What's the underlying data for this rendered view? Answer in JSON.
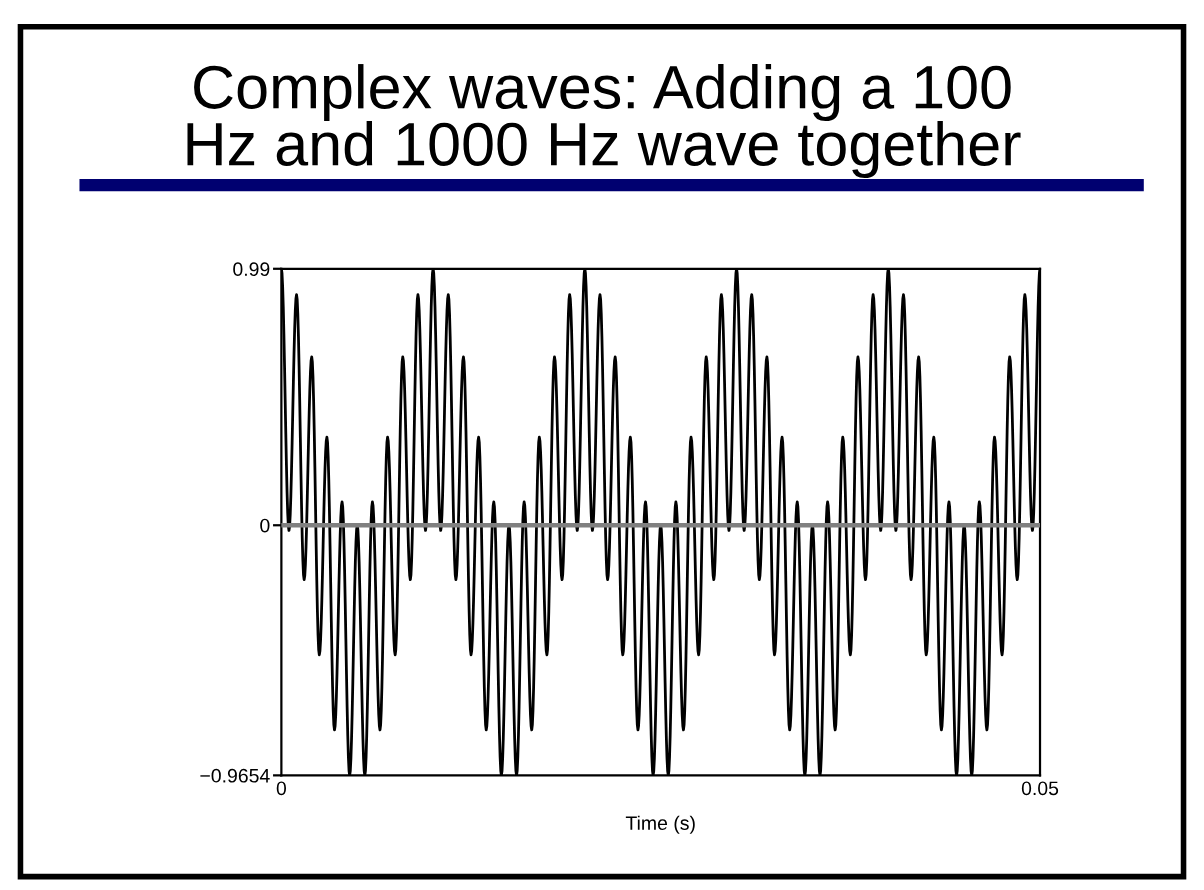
{
  "chart_data": {
    "type": "line",
    "title": "Complex waves: Adding a 100\nHz and 1000 Hz wave together",
    "xlabel": "Time (s)",
    "x": [
      0,
      0.0005,
      0.001,
      0.0015,
      0.002,
      0.0025,
      0.003,
      0.0035,
      0.004,
      0.0045,
      0.005,
      0.0055,
      0.006,
      0.0065,
      0.007,
      0.0075,
      0.008,
      0.0085,
      0.009,
      0.0095,
      0.01,
      0.0105,
      0.011,
      0.0115,
      0.012,
      0.0125,
      0.013,
      0.0135,
      0.014,
      0.0145,
      0.015,
      0.0155,
      0.016,
      0.0165,
      0.017,
      0.0175,
      0.018,
      0.0185,
      0.019,
      0.0195,
      0.02,
      0.0205,
      0.021,
      0.0215,
      0.022,
      0.0225,
      0.023,
      0.0235,
      0.024,
      0.0245,
      0.025,
      0.0255,
      0.026,
      0.0265,
      0.027,
      0.0275,
      0.028,
      0.0285,
      0.029,
      0.0295,
      0.03,
      0.0305,
      0.031,
      0.0315,
      0.032,
      0.0325,
      0.033,
      0.0335,
      0.034,
      0.0345,
      0.035,
      0.0355,
      0.036,
      0.0365,
      0.037,
      0.0375,
      0.038,
      0.0385,
      0.039,
      0.0395,
      0.04,
      0.0405,
      0.041,
      0.0415,
      0.042,
      0.0425,
      0.043,
      0.0435,
      0.044,
      0.0445,
      0.045,
      0.0455,
      0.046,
      0.0465,
      0.047,
      0.0475,
      0.048,
      0.0485,
      0.049,
      0.0495,
      0.05
    ],
    "series": [
      {
        "color": "#000000",
        "values": [
          0.99,
          -0.02,
          0.89,
          -0.21,
          0.65,
          -0.5,
          0.34,
          -0.79,
          0.09,
          -0.9654,
          0,
          -0.9654,
          0.09,
          -0.79,
          0.34,
          -0.5,
          0.65,
          -0.21,
          0.89,
          -0.02,
          0.99,
          -0.02,
          0.89,
          -0.21,
          0.65,
          -0.5,
          0.34,
          -0.79,
          0.09,
          -0.9654,
          0,
          -0.9654,
          0.09,
          -0.79,
          0.34,
          -0.5,
          0.65,
          -0.21,
          0.89,
          -0.02,
          0.99,
          -0.02,
          0.89,
          -0.21,
          0.65,
          -0.5,
          0.34,
          -0.79,
          0.09,
          -0.9654,
          0,
          -0.9654,
          0.09,
          -0.79,
          0.34,
          -0.5,
          0.65,
          -0.21,
          0.89,
          -0.02,
          0.99,
          -0.02,
          0.89,
          -0.21,
          0.65,
          -0.5,
          0.34,
          -0.79,
          0.09,
          -0.9654,
          0,
          -0.9654,
          0.09,
          -0.79,
          0.34,
          -0.5,
          0.65,
          -0.21,
          0.89,
          -0.02,
          0.99,
          -0.02,
          0.89,
          -0.21,
          0.65,
          -0.5,
          0.34,
          -0.79,
          0.09,
          -0.9654,
          0,
          -0.9654,
          0.09,
          -0.79,
          0.34,
          -0.5,
          0.65,
          -0.21,
          0.89,
          -0.02,
          0.99
        ]
      }
    ],
    "xlim": [
      0,
      0.05
    ],
    "xticks": [
      0,
      0.05
    ],
    "ylim": [
      -0.9654,
      0.99
    ],
    "yticks": [
      {
        "value": -0.9654,
        "label": "−0.9654"
      },
      0,
      0.99
    ],
    "ref_lines": [
      {
        "axis": "y",
        "value": 0,
        "color": "#808080"
      }
    ],
    "grid": false
  }
}
